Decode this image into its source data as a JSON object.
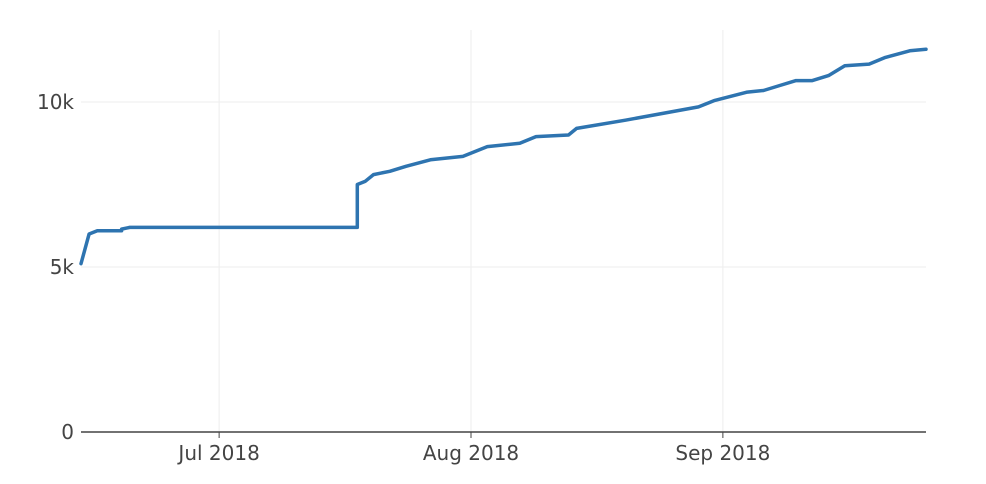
{
  "chart_data": {
    "type": "line",
    "title": "",
    "xlabel": "",
    "ylabel": "",
    "x_start": "2018-06-14",
    "x_end": "2018-09-26",
    "xlim": [
      "2018-06-14",
      "2018-09-26"
    ],
    "ylim": [
      0,
      12000
    ],
    "grid": true,
    "legend": "none",
    "color": "#2e74b0",
    "x_ticks": [
      {
        "label": "Jul 2018",
        "date": "2018-07-01"
      },
      {
        "label": "Aug 2018",
        "date": "2018-08-01"
      },
      {
        "label": "Sep 2018",
        "date": "2018-09-01"
      }
    ],
    "y_ticks": [
      {
        "label": "0",
        "value": 0
      },
      {
        "label": "5k",
        "value": 5000
      },
      {
        "label": "10k",
        "value": 10000
      }
    ],
    "series": [
      {
        "x": [
          "2018-06-14",
          "2018-06-15",
          "2018-06-16",
          "2018-06-19",
          "2018-06-19",
          "2018-06-20",
          "2018-07-01",
          "2018-07-10",
          "2018-07-18",
          "2018-07-18",
          "2018-07-19",
          "2018-07-20",
          "2018-07-22",
          "2018-07-24",
          "2018-07-27",
          "2018-07-31",
          "2018-08-03",
          "2018-08-07",
          "2018-08-09",
          "2018-08-13",
          "2018-08-14",
          "2018-08-20",
          "2018-08-29",
          "2018-08-31",
          "2018-09-04",
          "2018-09-06",
          "2018-09-08",
          "2018-09-10",
          "2018-09-12",
          "2018-09-14",
          "2018-09-16",
          "2018-09-19",
          "2018-09-21",
          "2018-09-24",
          "2018-09-26"
        ],
        "y": [
          5100,
          6000,
          6100,
          6100,
          6150,
          6200,
          6200,
          6200,
          6200,
          7500,
          7600,
          7800,
          7900,
          8050,
          8250,
          8350,
          8650,
          8750,
          8950,
          9000,
          9200,
          9450,
          9850,
          10050,
          10300,
          10350,
          10500,
          10650,
          10650,
          10800,
          11100,
          11150,
          11350,
          11550,
          11600
        ]
      }
    ]
  }
}
